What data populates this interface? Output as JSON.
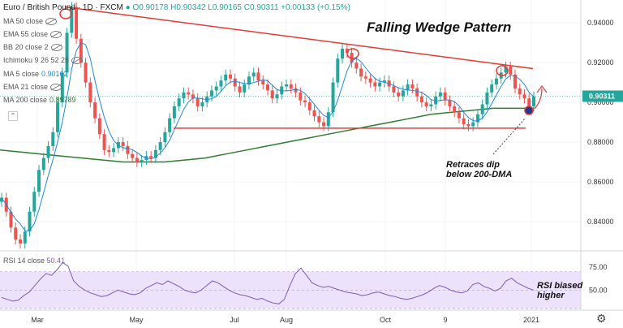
{
  "header": {
    "symbol": "Euro / British Pound · 1D · FXCM",
    "ohlc": "O0.90178 H0.90342 L0.90165 C0.90311 +0.00133 (+0.15%)"
  },
  "indicators": [
    {
      "label": "MA 50 close",
      "value": ""
    },
    {
      "label": "EMA 55 close",
      "value": ""
    },
    {
      "label": "BB 20 close 2",
      "value": ""
    },
    {
      "label": "Ichimoku 9 26 52 26",
      "value": ""
    },
    {
      "label": "MA 5 close",
      "value": "0.90162"
    },
    {
      "label": "EMA 21 close",
      "value": ""
    },
    {
      "label": "MA 200 close",
      "value": "0.89789"
    }
  ],
  "annotations": {
    "title": "Falling Wedge Pattern",
    "retrace_line1": "Retraces dip",
    "retrace_line2": "below 200-DMA",
    "rsi_line1": "RSI biased",
    "rsi_line2": "higher"
  },
  "rsi": {
    "label": "RSI 14 close",
    "value": "50.41",
    "ticks": [
      "75.00",
      "50.00"
    ]
  },
  "colors": {
    "up": "#26a69a",
    "down": "#ef5350",
    "ma200": "#2e7d32",
    "ma5": "#1e88e5",
    "pattern": "#e53935",
    "rsi": "#7e57c2",
    "rsi_band": "#ede2fb",
    "price_tag": "#26a69a"
  },
  "chart_data": {
    "type": "candlestick",
    "x_ticks": [
      "Mar",
      "May",
      "Jul",
      "Aug",
      "Oct",
      "9",
      "2021"
    ],
    "y_ticks": [
      0.94,
      0.92,
      0.9,
      0.88,
      0.86,
      0.84
    ],
    "y_tick_labels": [
      "0.94000",
      "0.92000",
      "0.90000",
      "0.88000",
      "0.86000",
      "0.84000"
    ],
    "ylim": [
      0.8265,
      0.9515
    ],
    "last_price": "0.90311",
    "close_path": [
      0.852,
      0.845,
      0.837,
      0.831,
      0.829,
      0.835,
      0.845,
      0.855,
      0.866,
      0.872,
      0.878,
      0.885,
      0.9,
      0.915,
      0.935,
      0.948,
      0.932,
      0.92,
      0.91,
      0.9,
      0.892,
      0.884,
      0.876,
      0.875,
      0.877,
      0.88,
      0.878,
      0.874,
      0.872,
      0.87,
      0.871,
      0.873,
      0.872,
      0.876,
      0.88,
      0.885,
      0.892,
      0.898,
      0.902,
      0.905,
      0.904,
      0.902,
      0.898,
      0.9,
      0.903,
      0.906,
      0.908,
      0.911,
      0.914,
      0.912,
      0.908,
      0.905,
      0.909,
      0.913,
      0.915,
      0.911,
      0.909,
      0.906,
      0.902,
      0.904,
      0.908,
      0.909,
      0.907,
      0.905,
      0.901,
      0.9,
      0.896,
      0.893,
      0.89,
      0.888,
      0.895,
      0.91,
      0.922,
      0.927,
      0.925,
      0.92,
      0.917,
      0.913,
      0.912,
      0.91,
      0.908,
      0.91,
      0.911,
      0.908,
      0.905,
      0.903,
      0.906,
      0.909,
      0.907,
      0.903,
      0.9,
      0.898,
      0.899,
      0.903,
      0.905,
      0.901,
      0.898,
      0.895,
      0.892,
      0.889,
      0.888,
      0.89,
      0.894,
      0.899,
      0.905,
      0.909,
      0.912,
      0.915,
      0.918,
      0.914,
      0.907,
      0.904,
      0.902,
      0.898,
      0.903
    ],
    "ma200_path": [
      0.876,
      0.875,
      0.874,
      0.873,
      0.872,
      0.871,
      0.87,
      0.87,
      0.87,
      0.871,
      0.872,
      0.874,
      0.876,
      0.878,
      0.88,
      0.882,
      0.884,
      0.886,
      0.888,
      0.89,
      0.892,
      0.894,
      0.895,
      0.896,
      0.897,
      0.897,
      0.897
    ],
    "wedge_upper": [
      [
        0.948,
        0.917
      ]
    ],
    "wedge_lower": [
      [
        0.887,
        0.887
      ]
    ],
    "rsi_values": [
      42,
      40,
      38,
      39,
      44,
      48,
      55,
      62,
      68,
      66,
      72,
      80,
      76,
      60,
      54,
      50,
      47,
      45,
      43,
      44,
      47,
      50,
      48,
      46,
      45,
      47,
      52,
      55,
      58,
      56,
      60,
      57,
      54,
      50,
      48,
      47,
      50,
      55,
      60,
      58,
      54,
      50,
      47,
      45,
      44,
      42,
      40,
      41,
      38,
      36,
      35,
      40,
      55,
      68,
      74,
      66,
      58,
      55,
      53,
      54,
      52,
      50,
      48,
      47,
      46,
      44,
      45,
      47,
      48,
      46,
      44,
      43,
      41,
      40,
      41,
      43,
      45,
      48,
      52,
      55,
      53,
      50,
      48,
      47,
      49,
      56,
      58,
      54,
      52,
      49,
      52,
      60,
      63,
      58,
      55,
      52,
      50
    ],
    "rsi_ylim": [
      30,
      90
    ],
    "rsi_band": [
      30,
      70
    ]
  }
}
